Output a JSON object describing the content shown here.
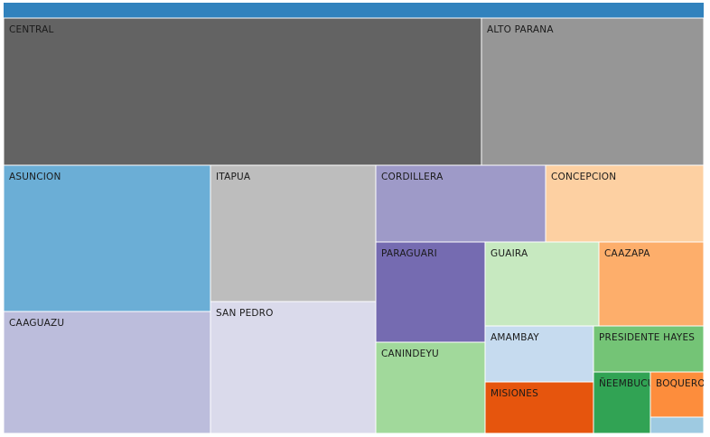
{
  "chart_data": {
    "type": "treemap",
    "header_color": "#3182bd",
    "items": [
      {
        "label": "CENTRAL",
        "color": "#636363"
      },
      {
        "label": "ALTO PARANA",
        "color": "#969696"
      },
      {
        "label": "ASUNCION",
        "color": "#6baed6"
      },
      {
        "label": "CAAGUAZU",
        "color": "#bcbddc"
      },
      {
        "label": "ITAPUA",
        "color": "#bdbdbd"
      },
      {
        "label": "SAN PEDRO",
        "color": "#dadaeb"
      },
      {
        "label": "CORDILLERA",
        "color": "#9e9ac8"
      },
      {
        "label": "CONCEPCION",
        "color": "#fdd0a2"
      },
      {
        "label": "PARAGUARI",
        "color": "#756bb1"
      },
      {
        "label": "GUAIRA",
        "color": "#c7e9c0"
      },
      {
        "label": "CAAZAPA",
        "color": "#fdae6b"
      },
      {
        "label": "CANINDEYU",
        "color": "#a1d99b"
      },
      {
        "label": "AMAMBAY",
        "color": "#c6dbef"
      },
      {
        "label": "PRESIDENTE HAYES",
        "color": "#74c476"
      },
      {
        "label": "MISIONES",
        "color": "#e6550d"
      },
      {
        "label": "ÑEEMBUCU",
        "color": "#31a354"
      },
      {
        "label": "BOQUERON",
        "color": "#fd8d3c"
      },
      {
        "label": "",
        "color": "#9ecae1"
      }
    ]
  }
}
